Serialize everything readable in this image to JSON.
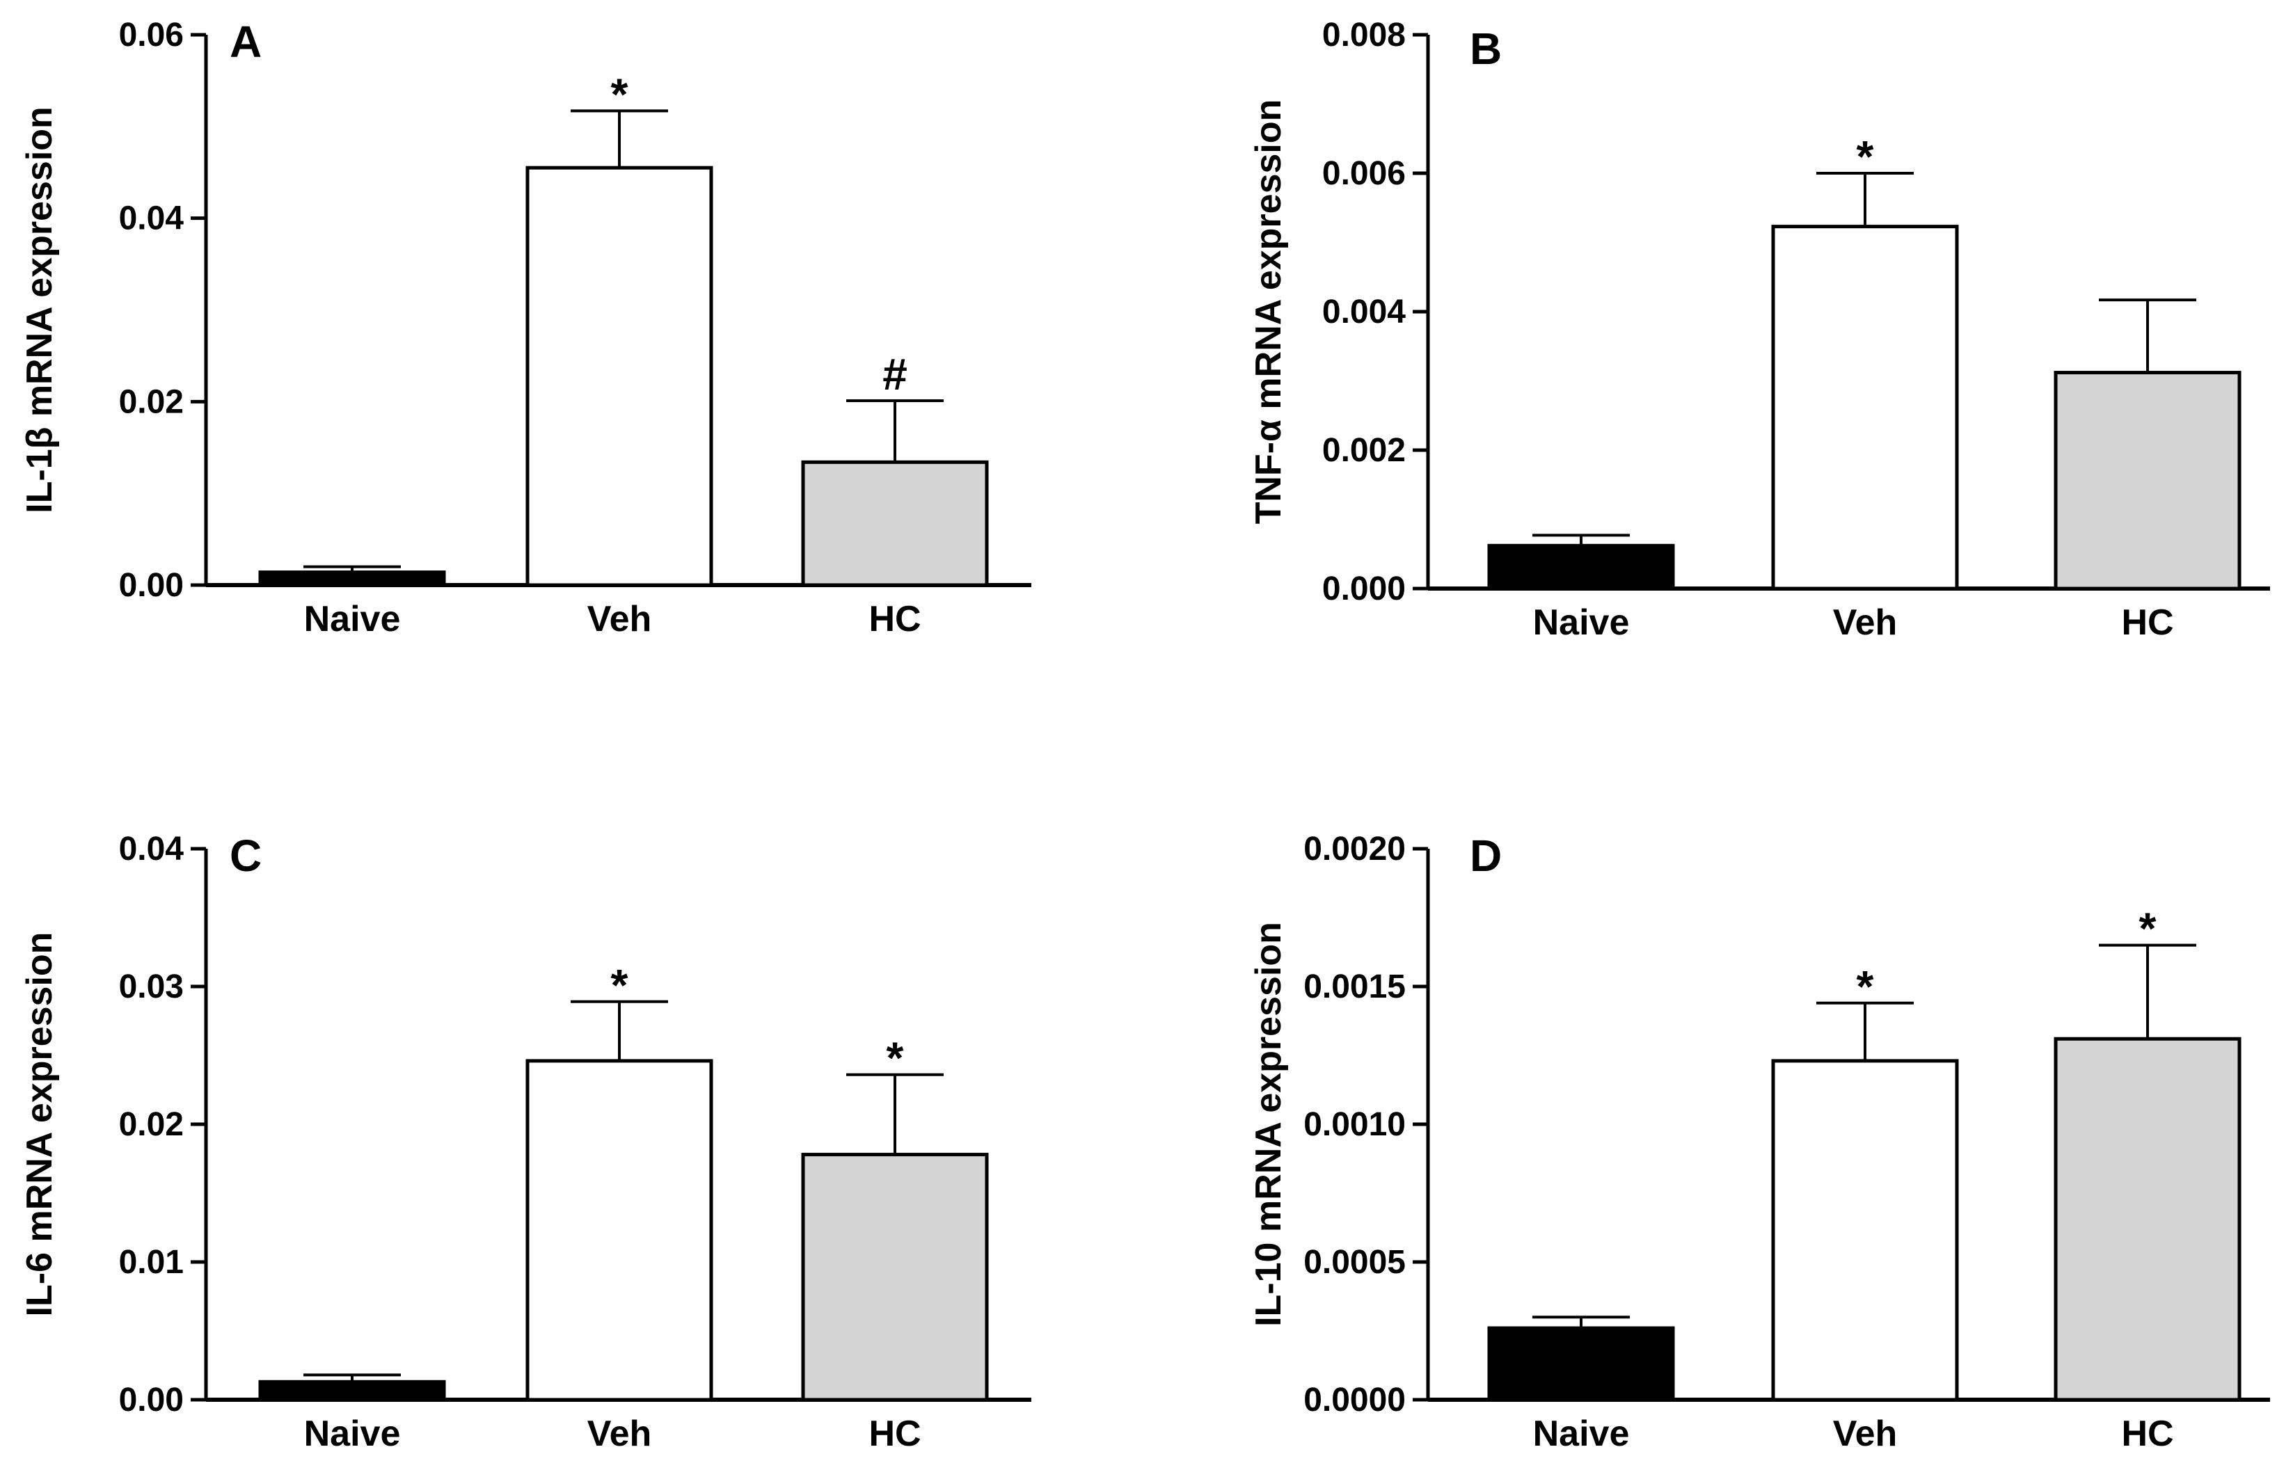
{
  "figure": {
    "colors": {
      "naive": "#000000",
      "veh": "#ffffff",
      "hc": "#d4d4d4",
      "axis": "#000000"
    }
  },
  "chart_data": [
    {
      "type": "bar",
      "panel": "A",
      "ylabel": "IL-1β mRNA expression",
      "categories": [
        "Naive",
        "Veh",
        "HC"
      ],
      "values": [
        0.0014,
        0.0455,
        0.0134
      ],
      "errors": [
        0.0006,
        0.0062,
        0.0067
      ],
      "significance": [
        "",
        "*",
        "#"
      ],
      "ylim": [
        0,
        0.06
      ],
      "yticks": [
        "0.00",
        "0.02",
        "0.04",
        "0.06"
      ]
    },
    {
      "type": "bar",
      "panel": "B",
      "ylabel": "TNF-α mRNA expression",
      "categories": [
        "Naive",
        "Veh",
        "HC"
      ],
      "values": [
        0.00062,
        0.00523,
        0.00312
      ],
      "errors": [
        0.00015,
        0.00077,
        0.00105
      ],
      "significance": [
        "",
        "*",
        ""
      ],
      "ylim": [
        0,
        0.008
      ],
      "yticks": [
        "0.000",
        "0.002",
        "0.004",
        "0.006",
        "0.008"
      ]
    },
    {
      "type": "bar",
      "panel": "C",
      "ylabel": "IL-6 mRNA expression",
      "categories": [
        "Naive",
        "Veh",
        "HC"
      ],
      "values": [
        0.0013,
        0.0246,
        0.0178
      ],
      "errors": [
        0.0005,
        0.0043,
        0.0058
      ],
      "significance": [
        "",
        "*",
        "*"
      ],
      "ylim": [
        0,
        0.04
      ],
      "yticks": [
        "0.00",
        "0.01",
        "0.02",
        "0.03",
        "0.04"
      ]
    },
    {
      "type": "bar",
      "panel": "D",
      "ylabel": "IL-10 mRNA expression",
      "categories": [
        "Naive",
        "Veh",
        "HC"
      ],
      "values": [
        0.00026,
        0.00123,
        0.00131
      ],
      "errors": [
        4e-05,
        0.00021,
        0.00034
      ],
      "significance": [
        "",
        "*",
        "*"
      ],
      "ylim": [
        0,
        0.002
      ],
      "yticks": [
        "0.0000",
        "0.0005",
        "0.0010",
        "0.0015",
        "0.0020"
      ]
    }
  ]
}
